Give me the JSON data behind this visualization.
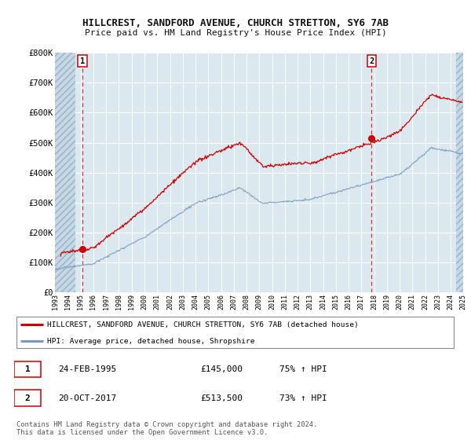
{
  "title1": "HILLCREST, SANDFORD AVENUE, CHURCH STRETTON, SY6 7AB",
  "title2": "Price paid vs. HM Land Registry's House Price Index (HPI)",
  "ylim": [
    0,
    800000
  ],
  "yticks": [
    0,
    100000,
    200000,
    300000,
    400000,
    500000,
    600000,
    700000,
    800000
  ],
  "ytick_labels": [
    "£0",
    "£100K",
    "£200K",
    "£300K",
    "£400K",
    "£500K",
    "£600K",
    "£700K",
    "£800K"
  ],
  "sale1_date": "24-FEB-1995",
  "sale1_price": 145000,
  "sale1_year": 1995.13,
  "sale2_date": "20-OCT-2017",
  "sale2_price": 513500,
  "sale2_year": 2017.8,
  "legend_line1": "HILLCREST, SANDFORD AVENUE, CHURCH STRETTON, SY6 7AB (detached house)",
  "legend_line2": "HPI: Average price, detached house, Shropshire",
  "table_row1": [
    "1",
    "24-FEB-1995",
    "£145,000",
    "75% ↑ HPI"
  ],
  "table_row2": [
    "2",
    "20-OCT-2017",
    "£513,500",
    "73% ↑ HPI"
  ],
  "footer": "Contains HM Land Registry data © Crown copyright and database right 2024.\nThis data is licensed under the Open Government Licence v3.0.",
  "line_color_red": "#cc0000",
  "line_color_blue": "#7799bb",
  "bg_color": "#dce8f0",
  "xmin": 1993,
  "xmax": 2025
}
